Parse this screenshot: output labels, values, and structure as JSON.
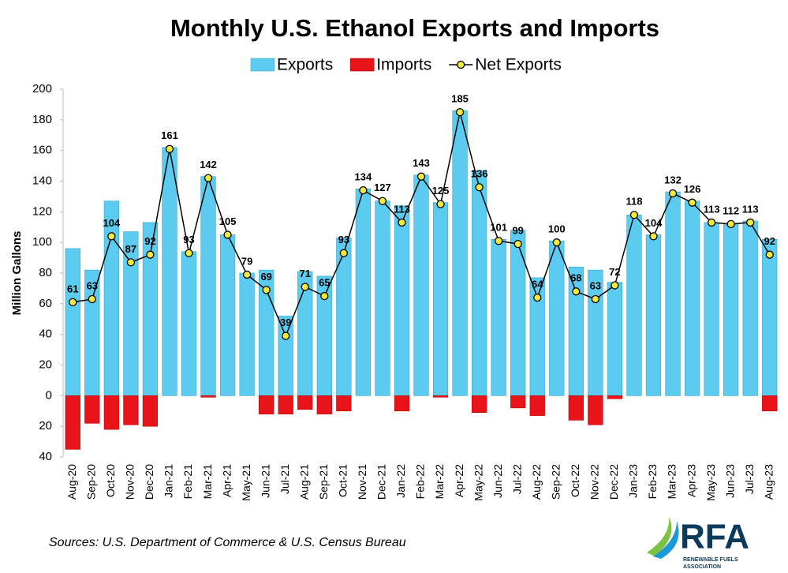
{
  "chart_data": {
    "type": "bar-line",
    "title": "Monthly U.S. Ethanol Exports and Imports",
    "y_label": "Million Gallons",
    "source": "Sources: U.S. Department of Commerce & U.S. Census Bureau",
    "logo": {
      "name": "RFA",
      "line1": "RENEWABLE FUELS",
      "line2": "ASSOCIATION"
    },
    "categories": [
      "Aug-20",
      "Sep-20",
      "Oct-20",
      "Nov-20",
      "Dec-20",
      "Jan-21",
      "Feb-21",
      "Mar-21",
      "Apr-21",
      "May-21",
      "Jun-21",
      "Jul-21",
      "Aug-21",
      "Sep-21",
      "Oct-21",
      "Nov-21",
      "Dec-21",
      "Jan-22",
      "Feb-22",
      "Mar-22",
      "Apr-22",
      "May-22",
      "Jun-22",
      "Jul-22",
      "Aug-22",
      "Sep-22",
      "Oct-22",
      "Nov-22",
      "Dec-22",
      "Jan-23",
      "Feb-23",
      "Mar-23",
      "Apr-23",
      "May-23",
      "Jun-23",
      "Jul-23",
      "Aug-23"
    ],
    "series": [
      {
        "name": "Exports",
        "kind": "bar",
        "color": "#5ccbf0",
        "values": [
          96,
          82,
          127,
          107,
          113,
          162,
          94,
          143,
          105,
          80,
          82,
          52,
          81,
          78,
          103,
          135,
          127,
          124,
          144,
          126,
          186,
          147,
          102,
          108,
          77,
          101,
          84,
          82,
          74,
          118,
          105,
          133,
          127,
          113,
          112,
          114,
          102
        ]
      },
      {
        "name": "Imports",
        "kind": "bar",
        "color": "#e8141a",
        "values": [
          -35,
          -18,
          -22,
          -19,
          -20,
          0,
          0,
          -1,
          0,
          0,
          -12,
          -12,
          -9,
          -12,
          -10,
          0,
          0,
          -10,
          0,
          -1,
          0,
          -11,
          0,
          -8,
          -13,
          0,
          -16,
          -19,
          -2,
          0,
          0,
          0,
          0,
          0,
          0,
          0,
          -10
        ]
      },
      {
        "name": "Net Exports",
        "kind": "line",
        "color": "#000000",
        "marker_color": "#f3ea3a",
        "values": [
          61,
          63,
          104,
          87,
          92,
          161,
          93,
          142,
          105,
          79,
          69,
          39,
          71,
          65,
          93,
          134,
          127,
          113,
          143,
          125,
          185,
          136,
          101,
          99,
          64,
          100,
          68,
          63,
          72,
          118,
          104,
          132,
          126,
          113,
          112,
          113,
          92
        ]
      }
    ],
    "ylim": [
      -40,
      200
    ],
    "yticks": [
      {
        "value": -40,
        "label": "40"
      },
      {
        "value": -20,
        "label": "20"
      },
      0,
      20,
      40,
      60,
      80,
      100,
      120,
      140,
      160,
      180,
      200
    ]
  }
}
